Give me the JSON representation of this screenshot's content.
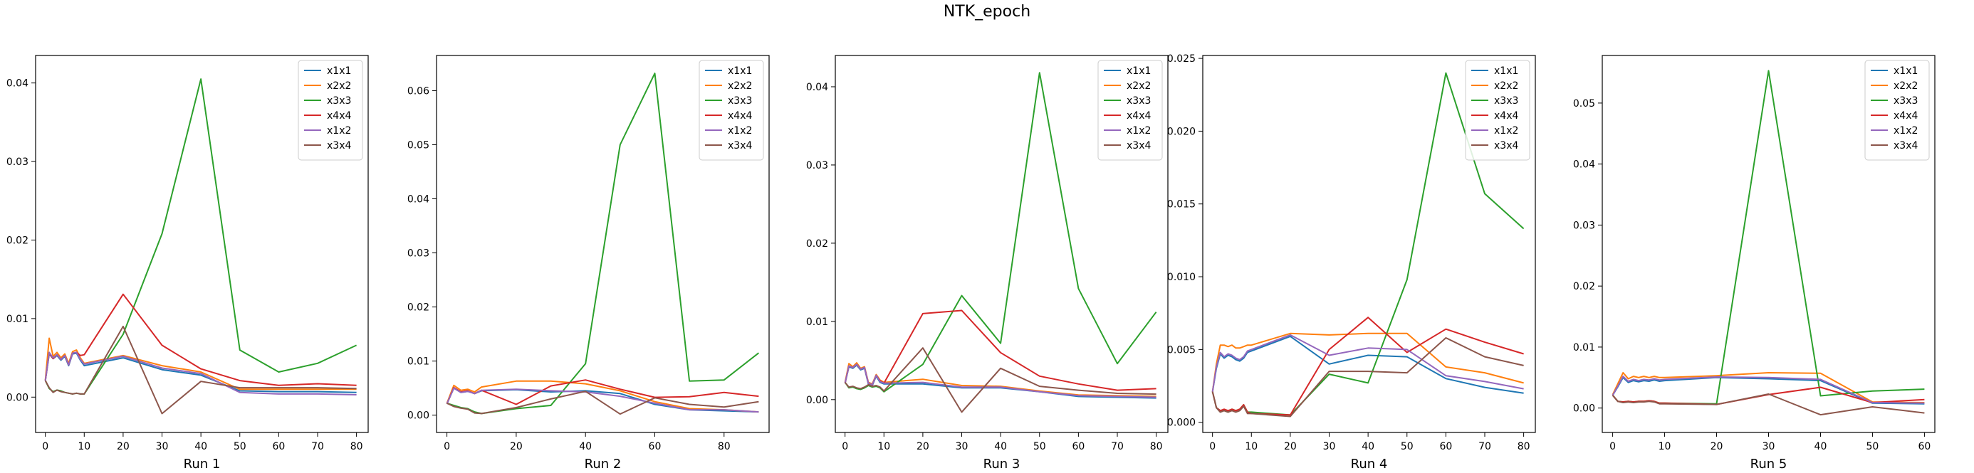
{
  "figure": {
    "title": "NTK_epoch"
  },
  "colors": [
    "#1f77b4",
    "#ff7f0e",
    "#2ca02c",
    "#d62728",
    "#9467bd",
    "#8c564b"
  ],
  "chart_data": [
    {
      "type": "line",
      "xlabel": "Run 1",
      "legend": "top-right",
      "xlim": [
        -2.5,
        83
      ],
      "ylim": [
        -0.0045,
        0.0435
      ],
      "xticks": [
        0,
        10,
        20,
        30,
        40,
        50,
        60,
        70,
        80
      ],
      "yticks": [
        0.0,
        0.01,
        0.02,
        0.03,
        0.04
      ],
      "ytick_labels": [
        "0.00",
        "0.01",
        "0.02",
        "0.03",
        "0.04"
      ],
      "x": [
        0,
        1,
        2,
        3,
        4,
        5,
        6,
        7,
        8,
        9,
        10,
        20,
        30,
        40,
        50,
        60,
        70,
        80
      ],
      "series": [
        {
          "name": "x1x1",
          "values": [
            0.0021,
            0.0055,
            0.0049,
            0.0053,
            0.0047,
            0.0052,
            0.004,
            0.0055,
            0.0056,
            0.0047,
            0.004,
            0.005,
            0.0035,
            0.0028,
            0.0008,
            0.0007,
            0.0007,
            0.0006
          ]
        },
        {
          "name": "x2x2",
          "values": [
            0.0022,
            0.0075,
            0.0052,
            0.0057,
            0.005,
            0.0055,
            0.0043,
            0.0058,
            0.006,
            0.005,
            0.0043,
            0.0053,
            0.004,
            0.0032,
            0.001,
            0.001,
            0.001,
            0.001
          ]
        },
        {
          "name": "x3x3",
          "values": [
            0.0021,
            0.0011,
            0.0007,
            0.0009,
            0.0008,
            0.0006,
            0.0005,
            0.0004,
            0.0005,
            0.0004,
            0.0004,
            0.008,
            0.0208,
            0.0405,
            0.006,
            0.0032,
            0.0043,
            0.0066
          ]
        },
        {
          "name": "x4x4",
          "values": [
            0.0021,
            0.0056,
            0.0049,
            0.0054,
            0.0048,
            0.0053,
            0.0041,
            0.0056,
            0.0057,
            0.0053,
            0.0054,
            0.0131,
            0.0066,
            0.0036,
            0.0021,
            0.0015,
            0.0017,
            0.0015
          ]
        },
        {
          "name": "x1x2",
          "values": [
            0.0021,
            0.0057,
            0.005,
            0.0054,
            0.0048,
            0.0053,
            0.0041,
            0.0056,
            0.0057,
            0.0048,
            0.0042,
            0.0052,
            0.0037,
            0.003,
            0.0006,
            0.0004,
            0.0004,
            0.0003
          ]
        },
        {
          "name": "x3x4",
          "values": [
            0.0021,
            0.0012,
            0.0006,
            0.0009,
            0.0007,
            0.0006,
            0.0005,
            0.0004,
            0.0005,
            0.0004,
            0.0004,
            0.009,
            -0.0021,
            0.002,
            0.0012,
            0.0012,
            0.0012,
            0.0011
          ]
        }
      ]
    },
    {
      "type": "line",
      "xlabel": "Run 2",
      "legend": "top-right",
      "xlim": [
        -3,
        93
      ],
      "ylim": [
        -0.0032,
        0.0665
      ],
      "xticks": [
        0,
        20,
        40,
        60,
        80
      ],
      "yticks": [
        0.0,
        0.01,
        0.02,
        0.03,
        0.04,
        0.05,
        0.06
      ],
      "ytick_labels": [
        "0.00",
        "0.01",
        "0.02",
        "0.03",
        "0.04",
        "0.05",
        "0.06"
      ],
      "x": [
        0,
        2,
        4,
        6,
        8,
        10,
        20,
        30,
        40,
        50,
        60,
        70,
        80,
        90
      ],
      "series": [
        {
          "name": "x1x1",
          "values": [
            0.0021,
            0.005,
            0.0042,
            0.0044,
            0.004,
            0.0045,
            0.0047,
            0.0043,
            0.0045,
            0.004,
            0.002,
            0.001,
            0.0008,
            0.0006
          ]
        },
        {
          "name": "x2x2",
          "values": [
            0.0022,
            0.0055,
            0.0046,
            0.0048,
            0.0043,
            0.0052,
            0.0063,
            0.0063,
            0.0058,
            0.0045,
            0.0025,
            0.0012,
            0.001,
            0.0006
          ]
        },
        {
          "name": "x3x3",
          "values": [
            0.0022,
            0.0018,
            0.0014,
            0.0012,
            0.0006,
            0.0003,
            0.0012,
            0.0018,
            0.0095,
            0.05,
            0.0632,
            0.0063,
            0.0065,
            0.0115
          ]
        },
        {
          "name": "x4x4",
          "values": [
            0.0021,
            0.0051,
            0.0043,
            0.0045,
            0.004,
            0.0046,
            0.002,
            0.0054,
            0.0065,
            0.0048,
            0.0033,
            0.0034,
            0.0042,
            0.0035
          ]
        },
        {
          "name": "x1x2",
          "values": [
            0.0021,
            0.005,
            0.0042,
            0.0044,
            0.004,
            0.0046,
            0.0048,
            0.0045,
            0.0043,
            0.0035,
            0.0022,
            0.001,
            0.001,
            0.0006
          ]
        },
        {
          "name": "x3x4",
          "values": [
            0.0022,
            0.0016,
            0.0013,
            0.0011,
            0.0004,
            0.0003,
            0.0014,
            0.003,
            0.0044,
            0.0002,
            0.0032,
            0.002,
            0.0015,
            0.0025
          ]
        }
      ]
    },
    {
      "type": "line",
      "xlabel": "Run 3",
      "legend": "top-right",
      "xlim": [
        -2.5,
        83
      ],
      "ylim": [
        -0.0042,
        0.044
      ],
      "xticks": [
        0,
        10,
        20,
        30,
        40,
        50,
        60,
        70,
        80
      ],
      "yticks": [
        0.0,
        0.01,
        0.02,
        0.03,
        0.04
      ],
      "ytick_labels": [
        "0.00",
        "0.01",
        "0.02",
        "0.03",
        "0.04"
      ],
      "x": [
        0,
        1,
        2,
        3,
        4,
        5,
        6,
        7,
        8,
        9,
        10,
        20,
        30,
        40,
        50,
        60,
        70,
        80
      ],
      "series": [
        {
          "name": "x1x1",
          "values": [
            0.0021,
            0.0042,
            0.004,
            0.0044,
            0.0038,
            0.004,
            0.002,
            0.0018,
            0.003,
            0.0022,
            0.002,
            0.002,
            0.0015,
            0.0015,
            0.001,
            0.0004,
            0.0003,
            0.0002
          ]
        },
        {
          "name": "x2x2",
          "values": [
            0.0022,
            0.0046,
            0.0042,
            0.0047,
            0.004,
            0.0042,
            0.0022,
            0.002,
            0.0032,
            0.0025,
            0.0022,
            0.0026,
            0.0018,
            0.0017,
            0.0011,
            0.0006,
            0.0005,
            0.0004
          ]
        },
        {
          "name": "x3x3",
          "values": [
            0.0022,
            0.0015,
            0.0016,
            0.0014,
            0.0013,
            0.0015,
            0.0018,
            0.0016,
            0.0017,
            0.0015,
            0.001,
            0.0045,
            0.0133,
            0.0072,
            0.0418,
            0.0142,
            0.0046,
            0.0112
          ]
        },
        {
          "name": "x4x4",
          "values": [
            0.0021,
            0.0043,
            0.0041,
            0.0045,
            0.0039,
            0.0041,
            0.0021,
            0.0019,
            0.0031,
            0.0024,
            0.0021,
            0.011,
            0.0114,
            0.006,
            0.003,
            0.002,
            0.0012,
            0.0014
          ]
        },
        {
          "name": "x1x2",
          "values": [
            0.0021,
            0.0043,
            0.0041,
            0.0045,
            0.0039,
            0.0041,
            0.0021,
            0.0019,
            0.0031,
            0.0023,
            0.0021,
            0.0022,
            0.0016,
            0.0016,
            0.001,
            0.0005,
            0.0004,
            0.0003
          ]
        },
        {
          "name": "x3x4",
          "values": [
            0.0022,
            0.0016,
            0.0017,
            0.0015,
            0.0014,
            0.0016,
            0.0019,
            0.0017,
            0.0018,
            0.0016,
            0.0011,
            0.0066,
            -0.0016,
            0.004,
            0.0017,
            0.0012,
            0.0008,
            0.0007
          ]
        }
      ]
    },
    {
      "type": "line",
      "xlabel": "Run 4",
      "legend": "top-right",
      "xlim": [
        -2.5,
        83
      ],
      "ylim": [
        -0.0007,
        0.0252
      ],
      "xticks": [
        0,
        10,
        20,
        30,
        40,
        50,
        60,
        70,
        80
      ],
      "yticks": [
        0.0,
        0.005,
        0.01,
        0.015,
        0.02,
        0.025
      ],
      "ytick_labels": [
        "0.000",
        "0.005",
        "0.010",
        "0.015",
        "0.020",
        "0.025"
      ],
      "x": [
        0,
        1,
        2,
        3,
        4,
        5,
        6,
        7,
        8,
        9,
        10,
        20,
        30,
        40,
        50,
        60,
        70,
        80
      ],
      "series": [
        {
          "name": "x1x1",
          "values": [
            0.0021,
            0.0037,
            0.0047,
            0.0044,
            0.0046,
            0.0045,
            0.0043,
            0.0042,
            0.0044,
            0.0048,
            0.0049,
            0.0059,
            0.004,
            0.0046,
            0.0045,
            0.003,
            0.0024,
            0.002
          ]
        },
        {
          "name": "x2x2",
          "values": [
            0.0021,
            0.004,
            0.0053,
            0.0053,
            0.0052,
            0.0053,
            0.0051,
            0.0051,
            0.0052,
            0.0053,
            0.0053,
            0.0061,
            0.006,
            0.0061,
            0.0061,
            0.0038,
            0.0034,
            0.0027
          ]
        },
        {
          "name": "x3x3",
          "values": [
            0.0021,
            0.001,
            0.0008,
            0.0008,
            0.0007,
            0.0009,
            0.0008,
            0.0009,
            0.0012,
            0.0007,
            0.0007,
            0.0005,
            0.0033,
            0.0027,
            0.0098,
            0.024,
            0.0157,
            0.0133
          ]
        },
        {
          "name": "x4x4",
          "values": [
            0.0021,
            0.001,
            0.0008,
            0.0009,
            0.0008,
            0.0009,
            0.0008,
            0.0009,
            0.0012,
            0.0007,
            0.0006,
            0.0005,
            0.005,
            0.0072,
            0.0048,
            0.0064,
            0.0055,
            0.0047
          ]
        },
        {
          "name": "x1x2",
          "values": [
            0.0021,
            0.0038,
            0.0048,
            0.0045,
            0.0047,
            0.0046,
            0.0044,
            0.0043,
            0.0045,
            0.0049,
            0.005,
            0.006,
            0.0046,
            0.0051,
            0.005,
            0.0032,
            0.0028,
            0.0023
          ]
        },
        {
          "name": "x3x4",
          "values": [
            0.0021,
            0.001,
            0.0007,
            0.0008,
            0.0007,
            0.0008,
            0.0007,
            0.0008,
            0.0011,
            0.0006,
            0.0006,
            0.0004,
            0.0035,
            0.0035,
            0.0034,
            0.0058,
            0.0045,
            0.0039
          ]
        }
      ]
    },
    {
      "type": "line",
      "xlabel": "Run 5",
      "legend": "top-right",
      "xlim": [
        -2,
        62
      ],
      "ylim": [
        -0.004,
        0.0578
      ],
      "xticks": [
        0,
        10,
        20,
        30,
        40,
        50,
        60
      ],
      "yticks": [
        0.0,
        0.01,
        0.02,
        0.03,
        0.04,
        0.05
      ],
      "ytick_labels": [
        "0.00",
        "0.01",
        "0.02",
        "0.03",
        "0.04",
        "0.05"
      ],
      "x": [
        0,
        1,
        2,
        3,
        4,
        5,
        6,
        7,
        8,
        9,
        10,
        20,
        30,
        40,
        50,
        60
      ],
      "series": [
        {
          "name": "x1x1",
          "values": [
            0.0021,
            0.0035,
            0.005,
            0.0042,
            0.0045,
            0.0043,
            0.0045,
            0.0044,
            0.0046,
            0.0044,
            0.0045,
            0.005,
            0.0048,
            0.0045,
            0.0008,
            0.0007
          ]
        },
        {
          "name": "x2x2",
          "values": [
            0.0022,
            0.004,
            0.0058,
            0.0048,
            0.0052,
            0.005,
            0.0052,
            0.005,
            0.0052,
            0.005,
            0.005,
            0.0053,
            0.0058,
            0.0057,
            0.001,
            0.0009
          ]
        },
        {
          "name": "x3x3",
          "values": [
            0.0021,
            0.0011,
            0.001,
            0.0011,
            0.001,
            0.0011,
            0.0011,
            0.0012,
            0.0011,
            0.0008,
            0.0008,
            0.0007,
            0.0553,
            0.002,
            0.0028,
            0.0031
          ]
        },
        {
          "name": "x4x4",
          "values": [
            0.0021,
            0.0011,
            0.001,
            0.0011,
            0.001,
            0.0011,
            0.0011,
            0.0012,
            0.0011,
            0.0008,
            0.0008,
            0.0006,
            0.0022,
            0.0034,
            0.0009,
            0.0014
          ]
        },
        {
          "name": "x1x2",
          "values": [
            0.0021,
            0.0036,
            0.0052,
            0.0044,
            0.0047,
            0.0045,
            0.0047,
            0.0046,
            0.0048,
            0.0046,
            0.0047,
            0.0051,
            0.005,
            0.0047,
            0.0009,
            0.0008
          ]
        },
        {
          "name": "x3x4",
          "values": [
            0.0021,
            0.0011,
            0.0009,
            0.001,
            0.0009,
            0.001,
            0.001,
            0.0011,
            0.001,
            0.0007,
            0.0007,
            0.0006,
            0.0023,
            -0.0011,
            0.0002,
            -0.0008
          ]
        }
      ]
    }
  ]
}
